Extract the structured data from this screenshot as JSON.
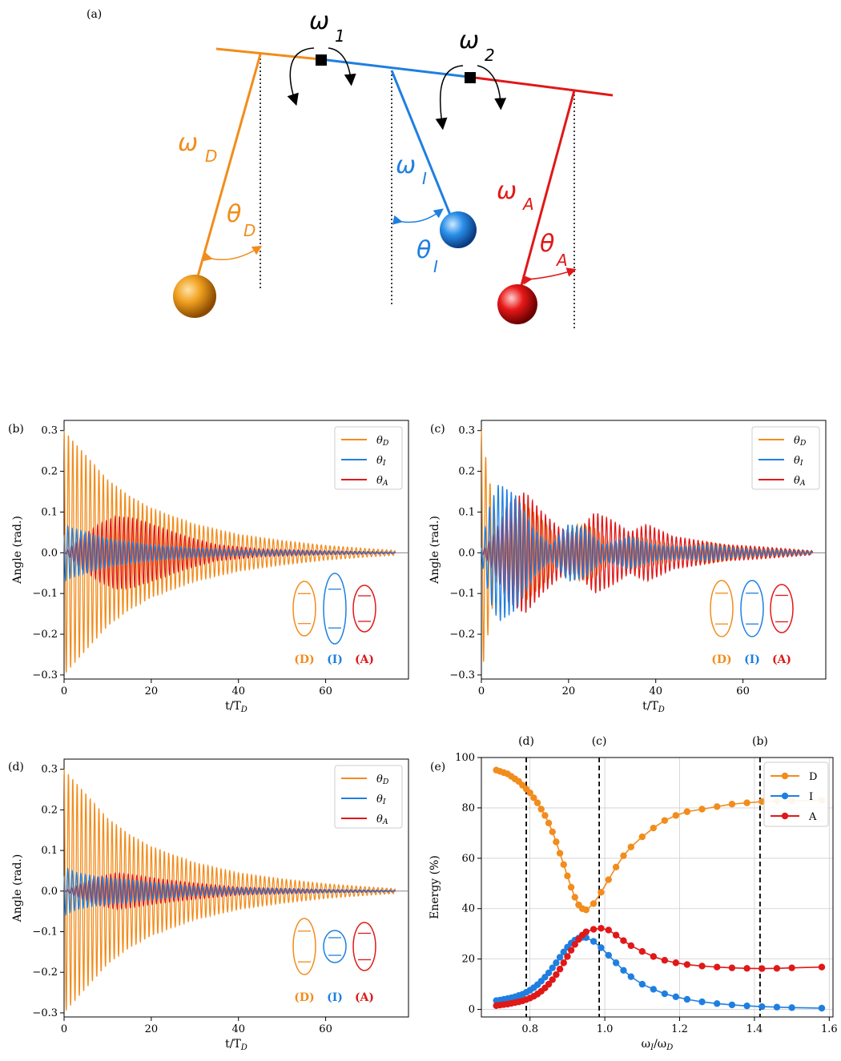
{
  "colors": {
    "D": "#f28c1c",
    "I": "#1f7fe0",
    "A": "#e01818"
  },
  "diagram": {
    "panel_label": "(a)",
    "omega1": "ω",
    "omega1_sub": "1",
    "omega2": "ω",
    "omega2_sub": "2",
    "omegaD": "ω",
    "omegaD_sub": "D",
    "omegaI": "ω",
    "omegaI_sub": "I",
    "omegaA": "ω",
    "omegaA_sub": "A",
    "thetaD": "θ",
    "thetaD_sub": "D",
    "thetaI": "θ",
    "thetaI_sub": "I",
    "thetaA": "θ",
    "thetaA_sub": "A"
  },
  "chart_data": [
    {
      "id": "b",
      "type": "line",
      "panel_label": "(b)",
      "xlabel": "t/T_D",
      "ylabel": "Angle (rad.)",
      "xlim": [
        0,
        79
      ],
      "ylim": [
        -0.31,
        0.325
      ],
      "xticks": [
        0,
        20,
        40,
        60
      ],
      "xtick_labels": [
        "0",
        "20",
        "40",
        "60"
      ],
      "yticks": [
        0.3,
        0.2,
        0.1,
        0.0,
        -0.1,
        -0.2,
        -0.3
      ],
      "ytick_labels": [
        "0.3",
        "0.2",
        "0.1",
        "0.0",
        "−0.1",
        "−0.2",
        "−0.3"
      ],
      "legend": [
        "θ_D",
        "θ_I",
        "θ_A"
      ],
      "legend_position": "top-right",
      "t_end": 76,
      "envelopes": {
        "D": [
          [
            0,
            0.3
          ],
          [
            5,
            0.24
          ],
          [
            10,
            0.18
          ],
          [
            15,
            0.14
          ],
          [
            20,
            0.11
          ],
          [
            30,
            0.07
          ],
          [
            40,
            0.045
          ],
          [
            50,
            0.03
          ],
          [
            60,
            0.018
          ],
          [
            70,
            0.01
          ],
          [
            76,
            0.006
          ]
        ],
        "I": [
          [
            0,
            0.07
          ],
          [
            2,
            0.06
          ],
          [
            10,
            0.035
          ],
          [
            20,
            0.02
          ],
          [
            30,
            0.012
          ],
          [
            40,
            0.008
          ],
          [
            60,
            0.004
          ],
          [
            76,
            0.002
          ]
        ],
        "A": [
          [
            0,
            0.0
          ],
          [
            4,
            0.04
          ],
          [
            8,
            0.07
          ],
          [
            12,
            0.09
          ],
          [
            16,
            0.085
          ],
          [
            20,
            0.07
          ],
          [
            28,
            0.04
          ],
          [
            35,
            0.02
          ],
          [
            45,
            0.01
          ],
          [
            60,
            0.005
          ],
          [
            76,
            0.002
          ]
        ]
      },
      "state_labels": [
        "(D)",
        "(I)",
        "(A)"
      ]
    },
    {
      "id": "c",
      "type": "line",
      "panel_label": "(c)",
      "xlabel": "t/T_D",
      "ylabel": "Angle (rad.)",
      "xlim": [
        0,
        79
      ],
      "ylim": [
        -0.31,
        0.325
      ],
      "xticks": [
        0,
        20,
        40,
        60
      ],
      "xtick_labels": [
        "0",
        "20",
        "40",
        "60"
      ],
      "yticks": [
        0.3,
        0.2,
        0.1,
        0.0,
        -0.1,
        -0.2,
        -0.3
      ],
      "ytick_labels": [
        "0.3",
        "0.2",
        "0.1",
        "0.0",
        "−0.1",
        "−0.2",
        "−0.3"
      ],
      "legend": [
        "θ_D",
        "θ_I",
        "θ_A"
      ],
      "legend_position": "top-right",
      "t_end": 76,
      "envelopes": {
        "D": [
          [
            0,
            0.3
          ],
          [
            2,
            0.17
          ],
          [
            4,
            0.04
          ],
          [
            6,
            0.06
          ],
          [
            10,
            0.12
          ],
          [
            14,
            0.08
          ],
          [
            18,
            0.03
          ],
          [
            22,
            0.07
          ],
          [
            26,
            0.06
          ],
          [
            30,
            0.02
          ],
          [
            34,
            0.04
          ],
          [
            40,
            0.03
          ],
          [
            46,
            0.015
          ],
          [
            52,
            0.025
          ],
          [
            60,
            0.012
          ],
          [
            68,
            0.008
          ],
          [
            76,
            0.004
          ]
        ],
        "I": [
          [
            0,
            0.02
          ],
          [
            2,
            0.12
          ],
          [
            4,
            0.17
          ],
          [
            8,
            0.14
          ],
          [
            12,
            0.06
          ],
          [
            16,
            0.02
          ],
          [
            20,
            0.07
          ],
          [
            24,
            0.06
          ],
          [
            28,
            0.02
          ],
          [
            34,
            0.04
          ],
          [
            40,
            0.02
          ],
          [
            46,
            0.015
          ],
          [
            52,
            0.02
          ],
          [
            60,
            0.01
          ],
          [
            76,
            0.003
          ]
        ],
        "A": [
          [
            0,
            0.0
          ],
          [
            3,
            0.05
          ],
          [
            6,
            0.12
          ],
          [
            10,
            0.15
          ],
          [
            14,
            0.1
          ],
          [
            18,
            0.06
          ],
          [
            22,
            0.05
          ],
          [
            26,
            0.1
          ],
          [
            30,
            0.08
          ],
          [
            34,
            0.05
          ],
          [
            38,
            0.07
          ],
          [
            44,
            0.04
          ],
          [
            50,
            0.03
          ],
          [
            56,
            0.02
          ],
          [
            64,
            0.015
          ],
          [
            76,
            0.005
          ]
        ]
      },
      "state_labels": [
        "(D)",
        "(I)",
        "(A)"
      ]
    },
    {
      "id": "d",
      "type": "line",
      "panel_label": "(d)",
      "xlabel": "t/T_D",
      "ylabel": "Angle (rad.)",
      "xlim": [
        0,
        79
      ],
      "ylim": [
        -0.31,
        0.325
      ],
      "xticks": [
        0,
        20,
        40,
        60
      ],
      "xtick_labels": [
        "0",
        "20",
        "40",
        "60"
      ],
      "yticks": [
        0.3,
        0.2,
        0.1,
        0.0,
        -0.1,
        -0.2,
        -0.3
      ],
      "ytick_labels": [
        "0.3",
        "0.2",
        "0.1",
        "0.0",
        "−0.1",
        "−0.2",
        "−0.3"
      ],
      "legend": [
        "θ_D",
        "θ_I",
        "θ_A"
      ],
      "legend_position": "top-right",
      "t_end": 76,
      "envelopes": {
        "D": [
          [
            0,
            0.3
          ],
          [
            5,
            0.24
          ],
          [
            10,
            0.18
          ],
          [
            15,
            0.14
          ],
          [
            20,
            0.11
          ],
          [
            30,
            0.07
          ],
          [
            40,
            0.045
          ],
          [
            50,
            0.03
          ],
          [
            60,
            0.018
          ],
          [
            70,
            0.01
          ],
          [
            76,
            0.006
          ]
        ],
        "I": [
          [
            0,
            0.06
          ],
          [
            3,
            0.045
          ],
          [
            8,
            0.035
          ],
          [
            14,
            0.03
          ],
          [
            20,
            0.022
          ],
          [
            30,
            0.012
          ],
          [
            40,
            0.008
          ],
          [
            60,
            0.004
          ],
          [
            76,
            0.002
          ]
        ],
        "A": [
          [
            0,
            0.0
          ],
          [
            4,
            0.02
          ],
          [
            8,
            0.035
          ],
          [
            12,
            0.045
          ],
          [
            16,
            0.04
          ],
          [
            22,
            0.03
          ],
          [
            30,
            0.02
          ],
          [
            40,
            0.01
          ],
          [
            60,
            0.004
          ],
          [
            76,
            0.002
          ]
        ]
      },
      "state_labels": [
        "(D)",
        "(I)",
        "(A)"
      ]
    },
    {
      "id": "e",
      "type": "line",
      "panel_label": "(e)",
      "xlabel": "ω_I/ω_D",
      "ylabel": "Energy (%)",
      "xlim": [
        0.67,
        1.61
      ],
      "ylim": [
        -3,
        100
      ],
      "xticks": [
        0.8,
        1.0,
        1.2,
        1.4,
        1.6
      ],
      "xtick_labels": [
        "0.8",
        "1.0",
        "1.2",
        "1.4",
        "1.6"
      ],
      "yticks": [
        0,
        20,
        40,
        60,
        80,
        100
      ],
      "ytick_labels": [
        "0",
        "20",
        "40",
        "60",
        "80",
        "100"
      ],
      "grid": true,
      "legend_position": "top-right",
      "vlines": [
        0.79,
        0.985,
        1.415
      ],
      "top_labels": [
        "(d)",
        "(c)",
        "(b)"
      ],
      "x": [
        0.71,
        0.72,
        0.73,
        0.74,
        0.75,
        0.76,
        0.77,
        0.78,
        0.79,
        0.8,
        0.81,
        0.82,
        0.83,
        0.84,
        0.85,
        0.86,
        0.87,
        0.88,
        0.89,
        0.9,
        0.91,
        0.92,
        0.93,
        0.94,
        0.95,
        0.97,
        0.99,
        1.01,
        1.03,
        1.05,
        1.07,
        1.1,
        1.13,
        1.16,
        1.19,
        1.22,
        1.26,
        1.3,
        1.34,
        1.38,
        1.42,
        1.46,
        1.5,
        1.58
      ],
      "series": [
        {
          "name": "D",
          "color": "#f28c1c",
          "values": [
            95,
            94.5,
            94,
            93.5,
            92.5,
            91.5,
            90.5,
            89,
            87.5,
            86,
            84,
            82,
            79.5,
            77,
            74,
            70.5,
            66.5,
            62,
            57.5,
            53,
            48.5,
            44.5,
            41.5,
            40,
            39.5,
            42,
            46.5,
            51.5,
            56.5,
            61,
            64.5,
            68.5,
            72,
            75,
            77,
            78.5,
            79.5,
            80.5,
            81.5,
            82,
            82.5,
            82.7,
            82.8,
            83
          ]
        },
        {
          "name": "I",
          "color": "#1f7fe0",
          "values": [
            3.5,
            3.7,
            4,
            4.3,
            4.6,
            5,
            5.5,
            6,
            6.8,
            7.6,
            8.6,
            9.8,
            11.2,
            12.8,
            14.5,
            16.5,
            18.5,
            20.7,
            22.8,
            24.7,
            26.3,
            27.5,
            28.3,
            28.6,
            28.5,
            27,
            24.5,
            21.5,
            18.5,
            15.5,
            13,
            10,
            8,
            6.2,
            5,
            4,
            3,
            2.3,
            1.8,
            1.4,
            1.1,
            0.9,
            0.7,
            0.5
          ]
        },
        {
          "name": "A",
          "color": "#e01818",
          "values": [
            1.5,
            1.7,
            1.9,
            2.1,
            2.4,
            2.7,
            3,
            3.4,
            3.9,
            4.5,
            5.2,
            6.1,
            7.2,
            8.5,
            10,
            11.8,
            13.8,
            16,
            18.5,
            21,
            23.5,
            25.8,
            27.8,
            29.5,
            30.8,
            31.8,
            32.2,
            31.5,
            29.5,
            27.3,
            25.3,
            23,
            21,
            19.5,
            18.5,
            17.8,
            17.2,
            16.8,
            16.5,
            16.3,
            16.2,
            16.3,
            16.5,
            16.8
          ]
        }
      ]
    }
  ]
}
